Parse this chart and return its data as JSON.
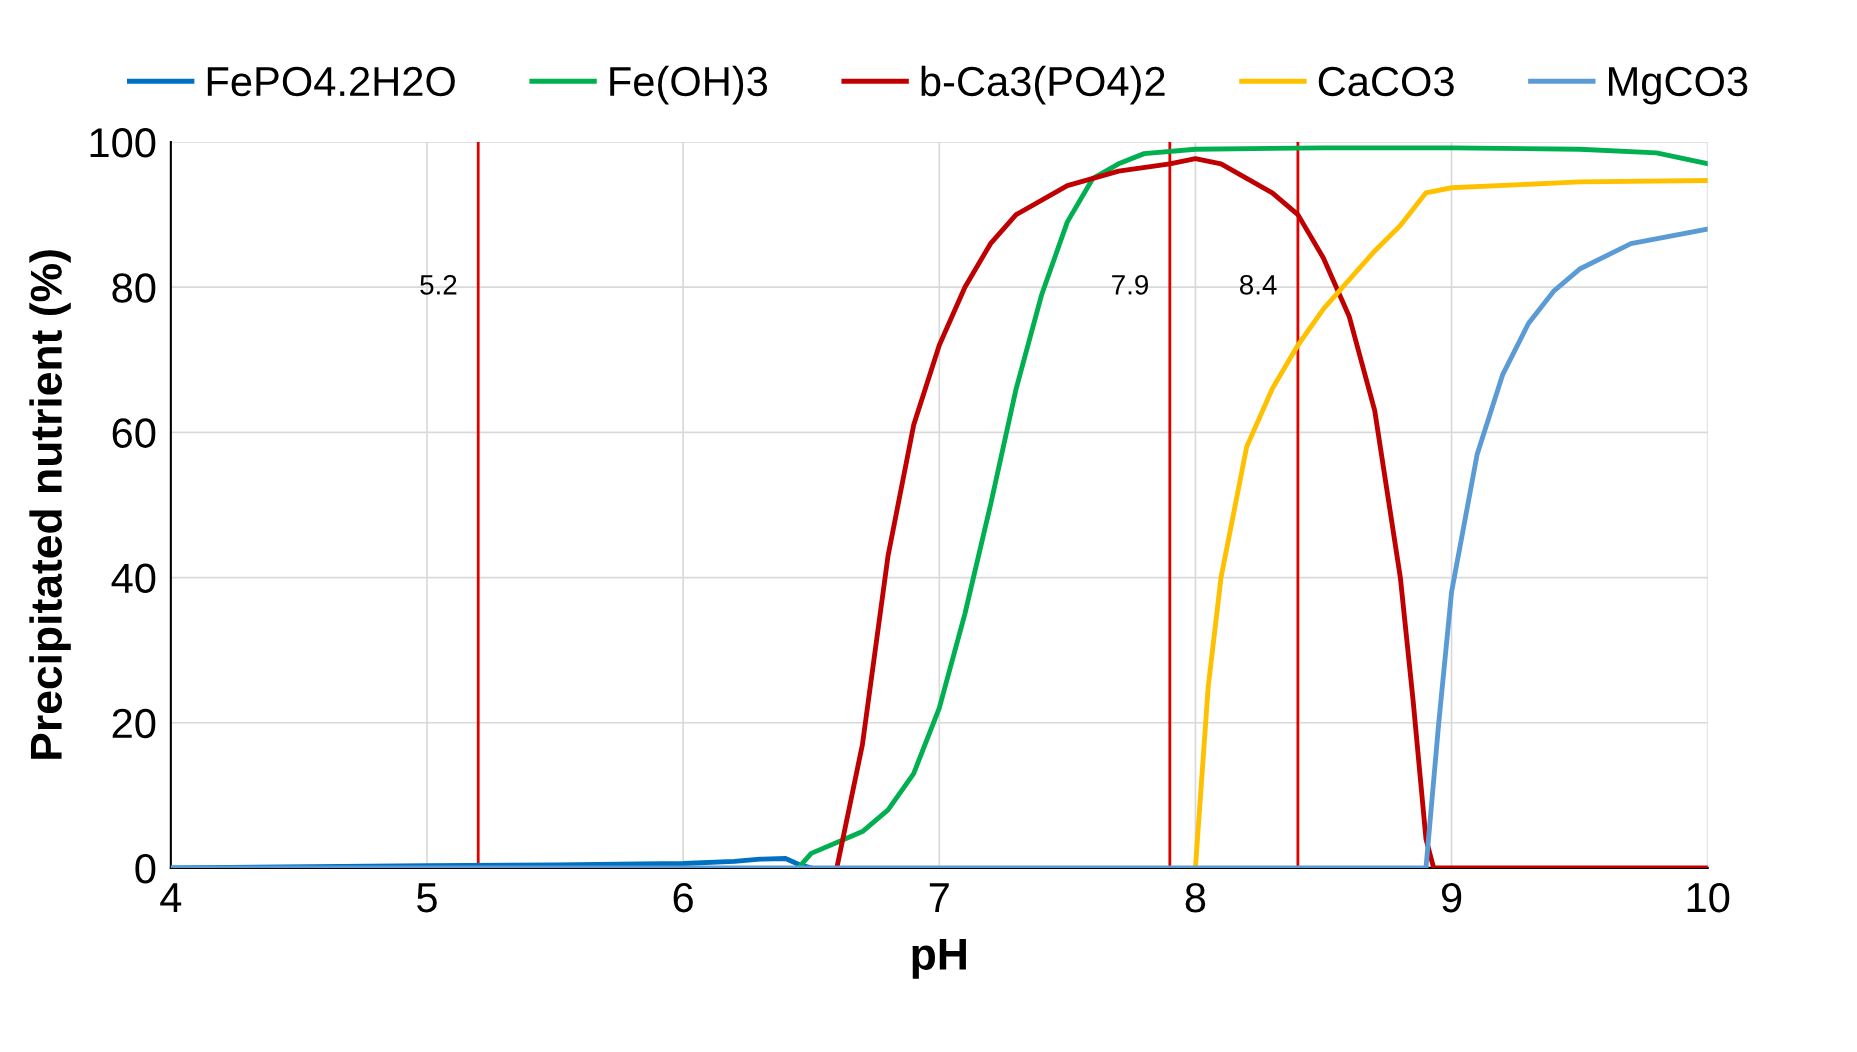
{
  "chart_data": {
    "type": "line",
    "xlabel": "pH",
    "ylabel": "Precipitated nutrient (%)",
    "xlim": [
      4,
      10
    ],
    "xticks": [
      4,
      5,
      6,
      7,
      8,
      9,
      10
    ],
    "ylim": [
      0,
      100
    ],
    "yticks": [
      0,
      20,
      40,
      60,
      80,
      100
    ],
    "grid": true,
    "legend": "top",
    "marker": "none",
    "line_style": "solid",
    "series": [
      {
        "name": "FePO4.2H2O",
        "color": "#0070c0",
        "x": [
          4,
          5,
          5.5,
          6,
          6.2,
          6.3,
          6.4,
          6.45,
          6.5
        ],
        "values": [
          0,
          0.3,
          0.4,
          0.6,
          0.9,
          1.2,
          1.3,
          0.5,
          0
        ]
      },
      {
        "name": "Fe(OH)3",
        "color": "#00b050",
        "x": [
          6.45,
          6.5,
          6.6,
          6.7,
          6.8,
          6.9,
          7.0,
          7.1,
          7.2,
          7.3,
          7.4,
          7.5,
          7.6,
          7.7,
          7.8,
          8.0,
          8.5,
          9.0,
          9.5,
          9.8,
          10
        ],
        "values": [
          0,
          2,
          3.5,
          5,
          8,
          13,
          22,
          35,
          50,
          66,
          79,
          89,
          95,
          97,
          98.4,
          99,
          99.2,
          99.2,
          99,
          98.5,
          97
        ]
      },
      {
        "name": "b-Ca3(PO4)2",
        "color": "#c00000",
        "x": [
          6.6,
          6.7,
          6.8,
          6.9,
          7.0,
          7.1,
          7.2,
          7.3,
          7.5,
          7.7,
          7.9,
          8.0,
          8.1,
          8.2,
          8.3,
          8.4,
          8.5,
          8.6,
          8.7,
          8.8,
          8.85,
          8.9,
          8.93,
          10
        ],
        "values": [
          0,
          17,
          43,
          61,
          72,
          80,
          86,
          90,
          94,
          96,
          97,
          97.7,
          97,
          95,
          93,
          90,
          84,
          76,
          63,
          40,
          23,
          4,
          0,
          0
        ]
      },
      {
        "name": "CaCO3",
        "color": "#ffc000",
        "x": [
          8.0,
          8.05,
          8.1,
          8.2,
          8.3,
          8.4,
          8.5,
          8.6,
          8.7,
          8.8,
          8.9,
          9.0,
          9.5,
          10
        ],
        "values": [
          0,
          25,
          40,
          58,
          66,
          72,
          77,
          81,
          85,
          88.5,
          93,
          93.7,
          94.5,
          94.7
        ]
      },
      {
        "name": "MgCO3",
        "color": "#5b9bd5",
        "x": [
          4,
          8.9,
          8.95,
          9.0,
          9.1,
          9.2,
          9.3,
          9.4,
          9.5,
          9.7,
          10
        ],
        "values": [
          0,
          0,
          20,
          38,
          57,
          68,
          75,
          79.5,
          82.5,
          86,
          88
        ]
      }
    ],
    "ref_lines": [
      {
        "axis": "x",
        "value": 5.2,
        "label": "5.2",
        "color": "#e00000"
      },
      {
        "axis": "x",
        "value": 7.9,
        "label": "7.9",
        "color": "#e00000"
      },
      {
        "axis": "x",
        "value": 8.4,
        "label": "8.4",
        "color": "#e00000"
      }
    ]
  }
}
